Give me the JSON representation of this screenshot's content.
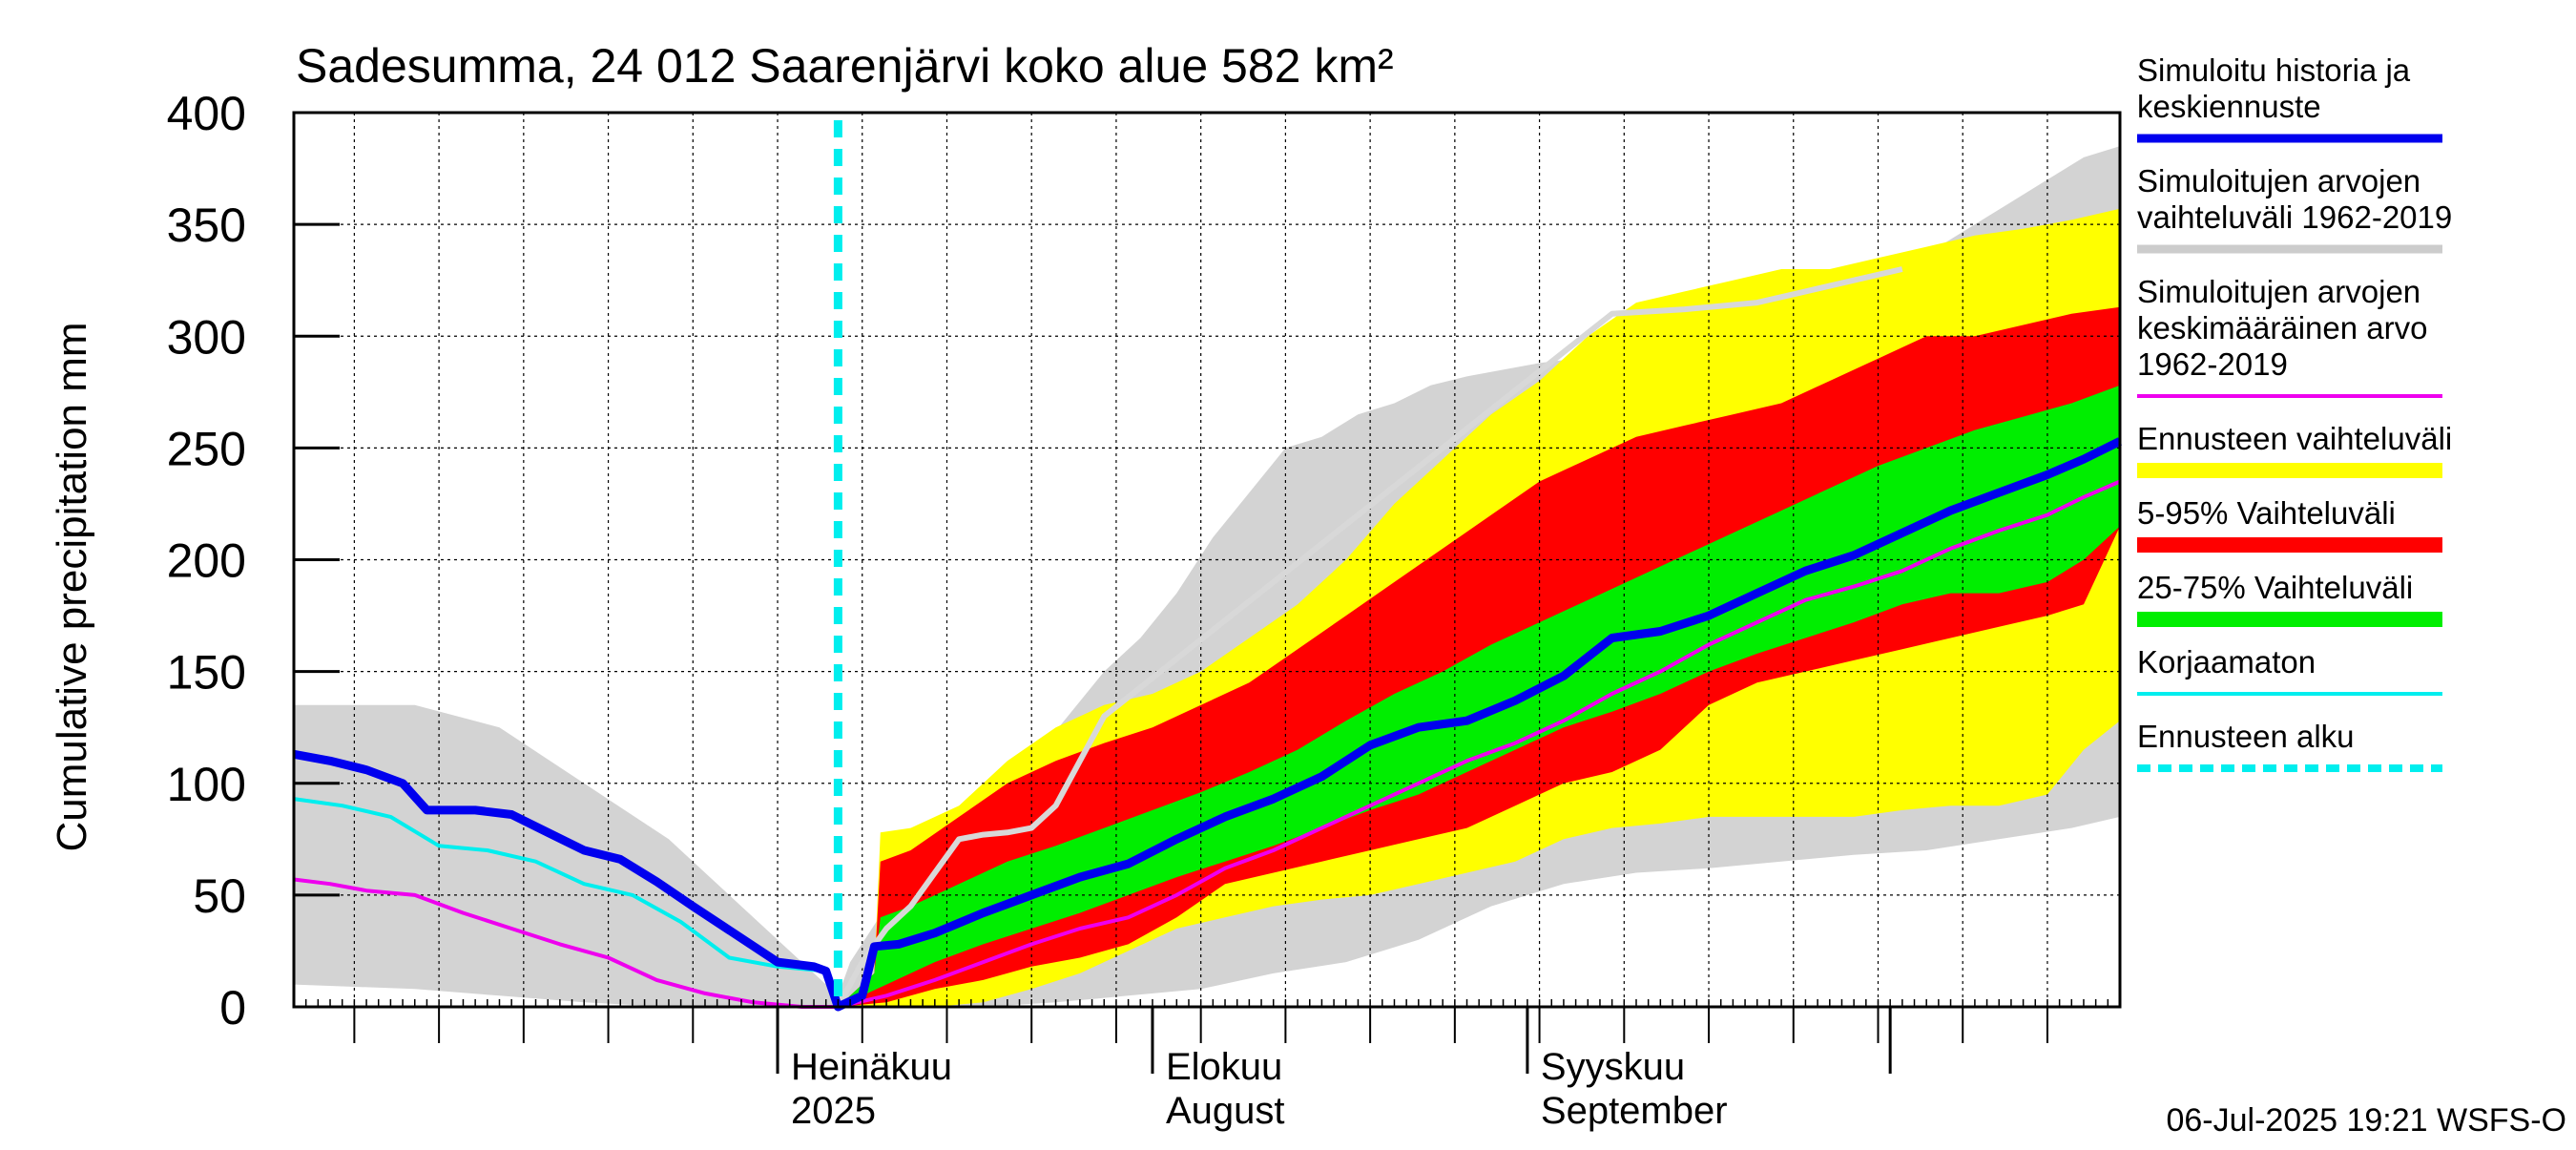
{
  "chart_data": {
    "type": "area",
    "title": "Sadesumma, 24 012 Saarenjärvi koko alue 582 km²",
    "ylabel": "Cumulative precipitation   mm",
    "ylim": [
      0,
      400
    ],
    "yticks": [
      0,
      50,
      100,
      150,
      200,
      250,
      300,
      350,
      400
    ],
    "xlim": [
      "2025-05-22",
      "2025-10-20"
    ],
    "month_labels": [
      {
        "date": "2025-07-01",
        "line1": "Heinäkuu",
        "line2": "2025"
      },
      {
        "date": "2025-08-01",
        "line1": "Elokuu",
        "line2": "August"
      },
      {
        "date": "2025-09-01",
        "line1": "Syyskuu",
        "line2": "September"
      },
      {
        "date": "2025-10-01",
        "line1": "",
        "line2": ""
      }
    ],
    "forecast_start": "2025-07-06",
    "footer": "06-Jul-2025 19:21 WSFS-O",
    "grid": true,
    "legend_position": "right",
    "legend": [
      {
        "key": "median",
        "label": [
          "Simuloitu historia ja",
          "keskiennuste"
        ],
        "color": "#0000ee",
        "style": "line-thick"
      },
      {
        "key": "sim_range",
        "label": [
          "Simuloitujen arvojen",
          "vaihteluväli 1962-2019"
        ],
        "color": "#cccccc",
        "style": "line-thick"
      },
      {
        "key": "sim_mean",
        "label": [
          "Simuloitujen arvojen",
          "keskimääräinen arvo",
          "   1962-2019"
        ],
        "color": "#ee00ee",
        "style": "line"
      },
      {
        "key": "fc_range",
        "label": [
          "Ennusteen vaihteluväli"
        ],
        "color": "#ffff00",
        "style": "band"
      },
      {
        "key": "p5_95",
        "label": [
          "5-95% Vaihteluväli"
        ],
        "color": "#ff0000",
        "style": "band"
      },
      {
        "key": "p25_75",
        "label": [
          "25-75% Vaihteluväli"
        ],
        "color": "#00ee00",
        "style": "band"
      },
      {
        "key": "uncorrected",
        "label": [
          "Korjaamaton"
        ],
        "color": "#00eeee",
        "style": "line"
      },
      {
        "key": "forecast_start",
        "label": [
          "Ennusteen alku"
        ],
        "color": "#00eeee",
        "style": "dashed"
      }
    ],
    "series": {
      "sim_range_upper": {
        "x": [
          "2025-05-22",
          "2025-06-01",
          "2025-06-08",
          "2025-06-15",
          "2025-06-22",
          "2025-06-28",
          "2025-07-03",
          "2025-07-06",
          "2025-07-07",
          "2025-07-10",
          "2025-07-13",
          "2025-07-16",
          "2025-07-19",
          "2025-07-22",
          "2025-07-25",
          "2025-07-28",
          "2025-07-31",
          "2025-08-03",
          "2025-08-06",
          "2025-08-09",
          "2025-08-12",
          "2025-08-15",
          "2025-08-18",
          "2025-08-21",
          "2025-08-24",
          "2025-08-27",
          "2025-08-30",
          "2025-09-02",
          "2025-09-05",
          "2025-09-08",
          "2025-09-11",
          "2025-09-14",
          "2025-09-17",
          "2025-09-20",
          "2025-09-23",
          "2025-09-26",
          "2025-09-29",
          "2025-10-02",
          "2025-10-05",
          "2025-10-08",
          "2025-10-11",
          "2025-10-14",
          "2025-10-17",
          "2025-10-20"
        ],
        "y": [
          135,
          135,
          125,
          100,
          75,
          45,
          20,
          5,
          20,
          45,
          65,
          80,
          95,
          110,
          130,
          150,
          165,
          185,
          210,
          230,
          250,
          255,
          265,
          270,
          278,
          282,
          285,
          288,
          290,
          295,
          300,
          305,
          310,
          315,
          320,
          325,
          330,
          335,
          340,
          350,
          360,
          370,
          380,
          385
        ]
      },
      "sim_range_lower": {
        "x": [
          "2025-05-22",
          "2025-06-01",
          "2025-06-08",
          "2025-06-15",
          "2025-06-22",
          "2025-06-28",
          "2025-07-03",
          "2025-07-06",
          "2025-07-07",
          "2025-07-12",
          "2025-07-18",
          "2025-07-24",
          "2025-07-30",
          "2025-08-05",
          "2025-08-11",
          "2025-08-17",
          "2025-08-23",
          "2025-08-29",
          "2025-09-04",
          "2025-09-10",
          "2025-09-16",
          "2025-09-22",
          "2025-09-28",
          "2025-10-04",
          "2025-10-10",
          "2025-10-16",
          "2025-10-20"
        ],
        "y": [
          10,
          8,
          5,
          2,
          0,
          0,
          0,
          0,
          0,
          0,
          0,
          2,
          5,
          8,
          15,
          20,
          30,
          45,
          55,
          60,
          62,
          65,
          68,
          70,
          75,
          80,
          85
        ]
      },
      "fc_range_upper": {
        "x": [
          "2025-07-06",
          "2025-07-07",
          "2025-07-09",
          "2025-07-09.5",
          "2025-07-12",
          "2025-07-16",
          "2025-07-20",
          "2025-07-24",
          "2025-07-28",
          "2025-08-01",
          "2025-08-05",
          "2025-08-09",
          "2025-08-13",
          "2025-08-17",
          "2025-08-21",
          "2025-08-25",
          "2025-08-29",
          "2025-09-02",
          "2025-09-06",
          "2025-09-10",
          "2025-09-14",
          "2025-09-18",
          "2025-09-22",
          "2025-09-26",
          "2025-09-30",
          "2025-10-04",
          "2025-10-08",
          "2025-10-12",
          "2025-10-16",
          "2025-10-20"
        ],
        "y": [
          0,
          5,
          15,
          78,
          80,
          90,
          110,
          125,
          135,
          140,
          150,
          165,
          180,
          200,
          225,
          245,
          265,
          280,
          300,
          315,
          320,
          325,
          330,
          330,
          335,
          340,
          345,
          348,
          352,
          357
        ]
      },
      "fc_range_lower": {
        "x": [
          "2025-07-06",
          "2025-07-10",
          "2025-07-14",
          "2025-07-18",
          "2025-07-22",
          "2025-07-26",
          "2025-07-30",
          "2025-08-03",
          "2025-08-07",
          "2025-08-11",
          "2025-08-15",
          "2025-08-19",
          "2025-08-23",
          "2025-08-27",
          "2025-08-31",
          "2025-09-04",
          "2025-09-08",
          "2025-09-12",
          "2025-09-16",
          "2025-09-20",
          "2025-09-24",
          "2025-09-28",
          "2025-10-02",
          "2025-10-06",
          "2025-10-10",
          "2025-10-14",
          "2025-10-17",
          "2025-10-20"
        ],
        "y": [
          0,
          0,
          0,
          2,
          8,
          15,
          25,
          35,
          40,
          45,
          48,
          50,
          55,
          60,
          65,
          75,
          80,
          82,
          85,
          85,
          85,
          85,
          88,
          90,
          90,
          95,
          115,
          128
        ]
      },
      "p5_95_upper": {
        "x": [
          "2025-07-06",
          "2025-07-07",
          "2025-07-09",
          "2025-07-09.5",
          "2025-07-12",
          "2025-07-16",
          "2025-07-20",
          "2025-07-24",
          "2025-07-28",
          "2025-08-01",
          "2025-08-05",
          "2025-08-09",
          "2025-08-13",
          "2025-08-17",
          "2025-08-21",
          "2025-08-25",
          "2025-08-29",
          "2025-09-02",
          "2025-09-06",
          "2025-09-10",
          "2025-09-14",
          "2025-09-18",
          "2025-09-22",
          "2025-09-26",
          "2025-09-30",
          "2025-10-04",
          "2025-10-08",
          "2025-10-12",
          "2025-10-16",
          "2025-10-20"
        ],
        "y": [
          0,
          5,
          15,
          65,
          70,
          85,
          100,
          110,
          118,
          125,
          135,
          145,
          160,
          175,
          190,
          205,
          220,
          235,
          245,
          255,
          260,
          265,
          270,
          280,
          290,
          300,
          300,
          305,
          310,
          313
        ]
      },
      "p5_95_lower": {
        "x": [
          "2025-07-06",
          "2025-07-10",
          "2025-07-14",
          "2025-07-18",
          "2025-07-22",
          "2025-07-26",
          "2025-07-30",
          "2025-08-03",
          "2025-08-07",
          "2025-08-11",
          "2025-08-15",
          "2025-08-19",
          "2025-08-23",
          "2025-08-27",
          "2025-08-31",
          "2025-09-04",
          "2025-09-08",
          "2025-09-12",
          "2025-09-16",
          "2025-09-20",
          "2025-09-24",
          "2025-09-28",
          "2025-10-02",
          "2025-10-06",
          "2025-10-10",
          "2025-10-14",
          "2025-10-17",
          "2025-10-20"
        ],
        "y": [
          0,
          2,
          8,
          12,
          18,
          22,
          28,
          40,
          55,
          60,
          65,
          70,
          75,
          80,
          90,
          100,
          105,
          115,
          135,
          145,
          150,
          155,
          160,
          165,
          170,
          175,
          180,
          215
        ]
      },
      "p25_75_upper": {
        "x": [
          "2025-07-06",
          "2025-07-07",
          "2025-07-09",
          "2025-07-09.5",
          "2025-07-12",
          "2025-07-16",
          "2025-07-20",
          "2025-07-24",
          "2025-07-28",
          "2025-08-01",
          "2025-08-05",
          "2025-08-09",
          "2025-08-13",
          "2025-08-17",
          "2025-08-21",
          "2025-08-25",
          "2025-08-29",
          "2025-09-02",
          "2025-09-06",
          "2025-09-10",
          "2025-09-14",
          "2025-09-18",
          "2025-09-22",
          "2025-09-26",
          "2025-09-30",
          "2025-10-04",
          "2025-10-08",
          "2025-10-12",
          "2025-10-16",
          "2025-10-20"
        ],
        "y": [
          0,
          5,
          15,
          40,
          45,
          55,
          65,
          72,
          80,
          88,
          96,
          105,
          115,
          128,
          140,
          150,
          162,
          172,
          182,
          192,
          202,
          212,
          222,
          232,
          242,
          250,
          258,
          264,
          270,
          278
        ]
      },
      "p25_75_lower": {
        "x": [
          "2025-07-06",
          "2025-07-10",
          "2025-07-14",
          "2025-07-18",
          "2025-07-22",
          "2025-07-26",
          "2025-07-30",
          "2025-08-03",
          "2025-08-07",
          "2025-08-11",
          "2025-08-15",
          "2025-08-19",
          "2025-08-23",
          "2025-08-27",
          "2025-08-31",
          "2025-09-04",
          "2025-09-08",
          "2025-09-12",
          "2025-09-16",
          "2025-09-20",
          "2025-09-24",
          "2025-09-28",
          "2025-10-02",
          "2025-10-06",
          "2025-10-10",
          "2025-10-14",
          "2025-10-17",
          "2025-10-20"
        ],
        "y": [
          0,
          10,
          20,
          28,
          35,
          42,
          50,
          58,
          65,
          72,
          80,
          88,
          95,
          105,
          115,
          125,
          132,
          140,
          150,
          158,
          165,
          172,
          180,
          185,
          185,
          190,
          200,
          215
        ]
      },
      "median": {
        "x": [
          "2025-05-22",
          "2025-05-25",
          "2025-05-28",
          "2025-05-31",
          "2025-06-02",
          "2025-06-06",
          "2025-06-09",
          "2025-06-12",
          "2025-06-15",
          "2025-06-18",
          "2025-06-21",
          "2025-06-24",
          "2025-07-01",
          "2025-07-04",
          "2025-07-05",
          "2025-07-06",
          "2025-07-08",
          "2025-07-09",
          "2025-07-11",
          "2025-07-14",
          "2025-07-18",
          "2025-07-22",
          "2025-07-26",
          "2025-07-30",
          "2025-08-03",
          "2025-08-07",
          "2025-08-11",
          "2025-08-15",
          "2025-08-19",
          "2025-08-23",
          "2025-08-27",
          "2025-08-31",
          "2025-09-04",
          "2025-09-08",
          "2025-09-12",
          "2025-09-16",
          "2025-09-20",
          "2025-09-24",
          "2025-09-28",
          "2025-10-02",
          "2025-10-06",
          "2025-10-10",
          "2025-10-14",
          "2025-10-17",
          "2025-10-20"
        ],
        "y": [
          113,
          110,
          106,
          100,
          88,
          88,
          86,
          78,
          70,
          66,
          56,
          45,
          20,
          18,
          16,
          0,
          5,
          27,
          28,
          33,
          42,
          50,
          58,
          64,
          75,
          85,
          93,
          103,
          117,
          125,
          128,
          137,
          148,
          165,
          168,
          175,
          185,
          195,
          202,
          212,
          222,
          230,
          238,
          245,
          253
        ]
      },
      "sim_mean": {
        "x": [
          "2025-05-22",
          "2025-05-25",
          "2025-05-28",
          "2025-06-01",
          "2025-06-05",
          "2025-06-09",
          "2025-06-13",
          "2025-06-17",
          "2025-06-21",
          "2025-06-25",
          "2025-06-29",
          "2025-07-03",
          "2025-07-06",
          "2025-07-10",
          "2025-07-14",
          "2025-07-18",
          "2025-07-22",
          "2025-07-26",
          "2025-07-30",
          "2025-08-03",
          "2025-08-07",
          "2025-08-11",
          "2025-08-15",
          "2025-08-19",
          "2025-08-23",
          "2025-08-27",
          "2025-08-31",
          "2025-09-04",
          "2025-09-08",
          "2025-09-12",
          "2025-09-16",
          "2025-09-20",
          "2025-09-24",
          "2025-09-28",
          "2025-10-02",
          "2025-10-06",
          "2025-10-10",
          "2025-10-14",
          "2025-10-17",
          "2025-10-20"
        ],
        "y": [
          57,
          55,
          52,
          50,
          42,
          35,
          28,
          22,
          12,
          6,
          2,
          0,
          0,
          5,
          12,
          20,
          28,
          35,
          40,
          50,
          62,
          70,
          80,
          90,
          100,
          110,
          118,
          128,
          140,
          150,
          162,
          172,
          182,
          188,
          195,
          205,
          213,
          220,
          228,
          235
        ]
      },
      "uncorrected": {
        "x": [
          "2025-05-22",
          "2025-05-26",
          "2025-05-30",
          "2025-06-03",
          "2025-06-07",
          "2025-06-11",
          "2025-06-15",
          "2025-06-19",
          "2025-06-23",
          "2025-06-27",
          "2025-07-01",
          "2025-07-05",
          "2025-07-06"
        ],
        "y": [
          93,
          90,
          85,
          72,
          70,
          65,
          55,
          50,
          38,
          22,
          18,
          16,
          0
        ]
      },
      "sim_history_gray": {
        "x": [
          "2025-07-06",
          "2025-07-08",
          "2025-07-10",
          "2025-07-12",
          "2025-07-14",
          "2025-07-16",
          "2025-07-18",
          "2025-07-20",
          "2025-07-22",
          "2025-07-24",
          "2025-07-26",
          "2025-07-28",
          "2025-09-08",
          "2025-09-14",
          "2025-09-20",
          "2025-09-24",
          "2025-09-28",
          "2025-10-02"
        ],
        "y": [
          0,
          20,
          35,
          45,
          60,
          75,
          77,
          78,
          80,
          90,
          110,
          130,
          310,
          312,
          315,
          320,
          325,
          330
        ]
      }
    }
  }
}
